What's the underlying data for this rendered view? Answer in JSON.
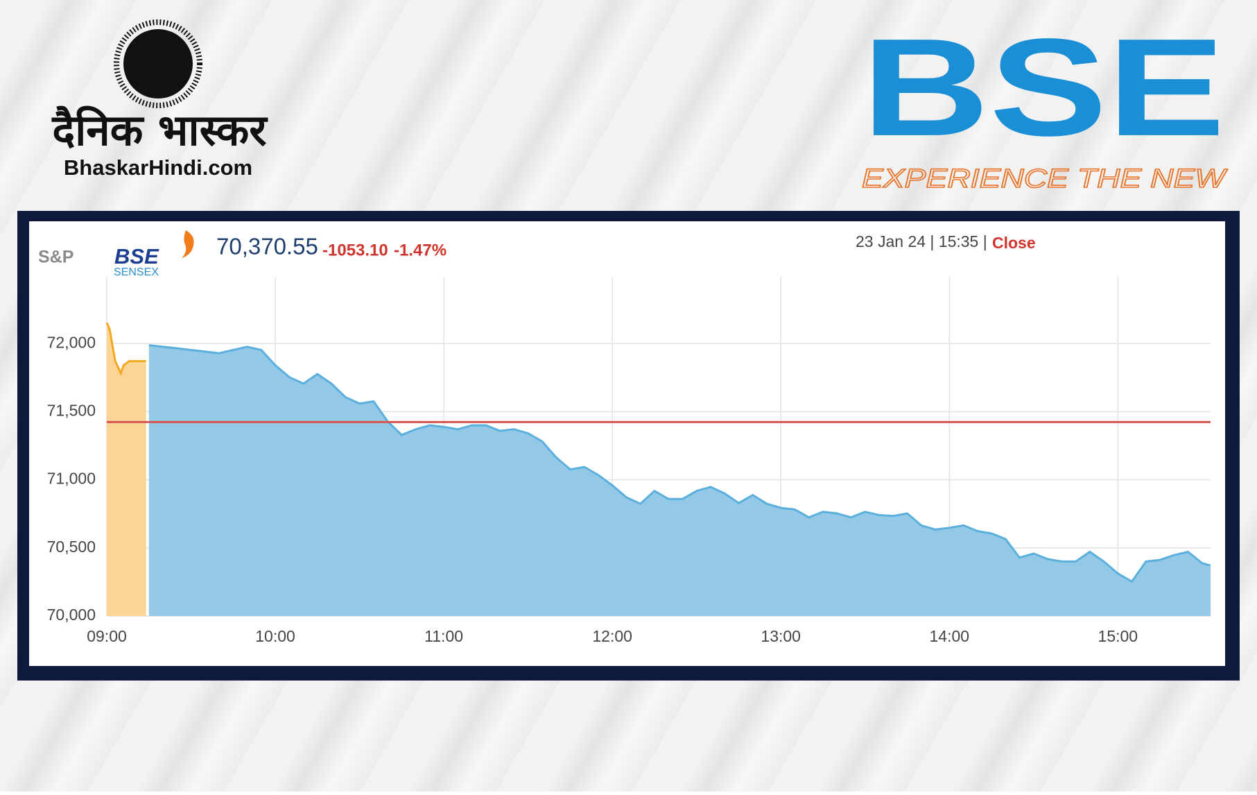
{
  "header": {
    "brand_hindi": "दैनिक भास्कर",
    "brand_site": "BhaskarHindi.com",
    "bse_logo": "BSE",
    "bse_tagline": "EXPERIENCE THE NEW"
  },
  "widget": {
    "logo_sp": "S&P",
    "logo_bse": "BSE",
    "logo_sensex": "SENSEX",
    "price": "70,370.55",
    "change": "-1053.10",
    "change_pct": "-1.47%",
    "timestamp": "23 Jan 24 | 15:35 |",
    "status": "Close"
  },
  "chart_data": {
    "type": "area",
    "xlim": [
      540,
      933
    ],
    "ylim": [
      70000,
      72490
    ],
    "xticks": [
      {
        "value": 540,
        "label": "09:00"
      },
      {
        "value": 600,
        "label": "10:00"
      },
      {
        "value": 660,
        "label": "11:00"
      },
      {
        "value": 720,
        "label": "12:00"
      },
      {
        "value": 780,
        "label": "13:00"
      },
      {
        "value": 840,
        "label": "14:00"
      },
      {
        "value": 900,
        "label": "15:00"
      }
    ],
    "yticks": [
      {
        "value": 70000,
        "label": "70,000"
      },
      {
        "value": 70500,
        "label": "70,500"
      },
      {
        "value": 71000,
        "label": "71,000"
      },
      {
        "value": 71500,
        "label": "71,500"
      },
      {
        "value": 72000,
        "label": "72,000"
      }
    ],
    "grid": true,
    "reference_line": {
      "value": 71423.65,
      "color": "#d9534f"
    },
    "series": [
      {
        "color": "#f5a623",
        "fill": "#fbd595",
        "x": [
          540,
          541,
          543,
          545,
          546,
          548,
          554
        ],
        "values": [
          72153,
          72106,
          71871,
          71782,
          71841,
          71871,
          71871
        ]
      },
      {
        "color": "#5aafdc",
        "fill": "#93c9e6",
        "x": [
          555,
          560,
          565,
          570,
          575,
          580,
          585,
          590,
          595,
          600,
          605,
          610,
          615,
          620,
          625,
          630,
          635,
          640,
          645,
          650,
          655,
          660,
          665,
          670,
          675,
          680,
          685,
          690,
          695,
          700,
          705,
          710,
          715,
          720,
          725,
          730,
          735,
          740,
          745,
          750,
          755,
          760,
          765,
          770,
          775,
          780,
          785,
          790,
          795,
          800,
          805,
          810,
          815,
          820,
          825,
          830,
          835,
          840,
          845,
          850,
          855,
          860,
          865,
          870,
          875,
          880,
          885,
          890,
          895,
          900,
          905,
          910,
          915,
          920,
          925,
          930,
          933
        ],
        "values": [
          71988,
          71976,
          71965,
          71953,
          71941,
          71929,
          71953,
          71976,
          71953,
          71841,
          71753,
          71706,
          71776,
          71706,
          71606,
          71559,
          71576,
          71429,
          71329,
          71371,
          71400,
          71388,
          71371,
          71400,
          71400,
          71359,
          71371,
          71341,
          71282,
          71165,
          71076,
          71094,
          71035,
          70959,
          70871,
          70824,
          70918,
          70859,
          70859,
          70918,
          70947,
          70900,
          70829,
          70888,
          70824,
          70794,
          70782,
          70724,
          70765,
          70753,
          70724,
          70765,
          70741,
          70735,
          70753,
          70665,
          70635,
          70647,
          70665,
          70624,
          70606,
          70565,
          70429,
          70459,
          70418,
          70400,
          70400,
          70471,
          70400,
          70312,
          70253,
          70400,
          70412,
          70447,
          70471,
          70388,
          70370.55
        ]
      }
    ]
  }
}
